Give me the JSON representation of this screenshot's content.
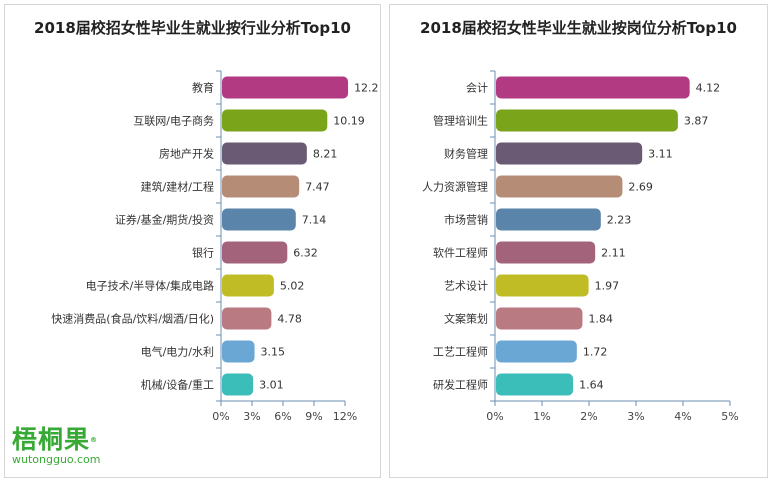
{
  "chart_data": [
    {
      "type": "bar",
      "orientation": "horizontal",
      "title": "2018届校招女性毕业生就业按行业分析Top10",
      "categories": [
        "教育",
        "互联网/电子商务",
        "房地产开发",
        "建筑/建材/工程",
        "证券/基金/期货/投资",
        "银行",
        "电子技术/半导体/集成电路",
        "快速消费品(食品/饮料/烟酒/日化)",
        "电气/电力/水利",
        "机械/设备/重工"
      ],
      "values": [
        12.2,
        10.19,
        8.21,
        7.47,
        7.14,
        6.32,
        5.02,
        4.78,
        3.15,
        3.01
      ],
      "value_labels": [
        "12.2",
        "10.19",
        "8.21",
        "7.47",
        "7.14",
        "6.32",
        "5.02",
        "4.78",
        "3.15",
        "3.01"
      ],
      "colors": [
        "#b23a82",
        "#7aa51a",
        "#6a5a73",
        "#b58d77",
        "#5a84aa",
        "#a3637a",
        "#bfbc26",
        "#b97a82",
        "#6aa7d4",
        "#3bbdb9"
      ],
      "xlim": [
        0,
        12
      ],
      "xticks": [
        0,
        3,
        6,
        9,
        12
      ],
      "xtick_labels": [
        "0%",
        "3%",
        "6%",
        "9%",
        "12%"
      ],
      "xlabel": "",
      "ylabel": ""
    },
    {
      "type": "bar",
      "orientation": "horizontal",
      "title": "2018届校招女性毕业生就业按岗位分析Top10",
      "categories": [
        "会计",
        "管理培训生",
        "财务管理",
        "人力资源管理",
        "市场营销",
        "软件工程师",
        "艺术设计",
        "文案策划",
        "工艺工程师",
        "研发工程师"
      ],
      "values": [
        4.12,
        3.87,
        3.11,
        2.69,
        2.23,
        2.11,
        1.97,
        1.84,
        1.72,
        1.64
      ],
      "value_labels": [
        "4.12",
        "3.87",
        "3.11",
        "2.69",
        "2.23",
        "2.11",
        "1.97",
        "1.84",
        "1.72",
        "1.64"
      ],
      "colors": [
        "#b23a82",
        "#7aa51a",
        "#6a5a73",
        "#b58d77",
        "#5a84aa",
        "#a3637a",
        "#bfbc26",
        "#b97a82",
        "#6aa7d4",
        "#3bbdb9"
      ],
      "xlim": [
        0,
        5
      ],
      "xticks": [
        0,
        1,
        2,
        3,
        4,
        5
      ],
      "xtick_labels": [
        "0%",
        "1%",
        "2%",
        "3%",
        "4%",
        "5%"
      ],
      "xlabel": "",
      "ylabel": ""
    }
  ],
  "logo": {
    "name": "梧桐果",
    "registered": "®",
    "url": "wutongguo.com",
    "color": "#37a935"
  }
}
